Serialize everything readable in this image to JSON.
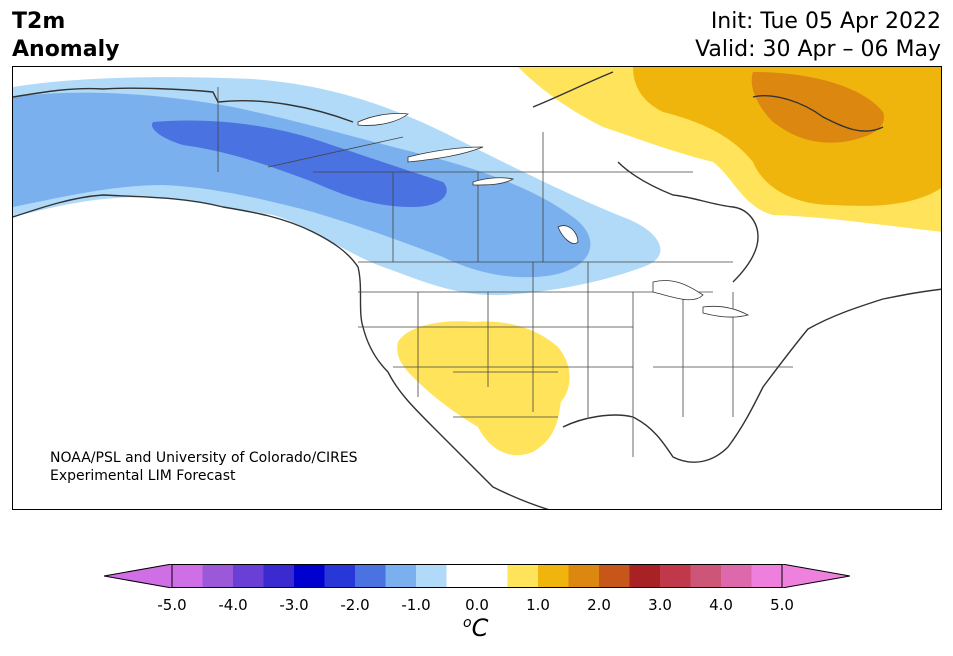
{
  "title": {
    "line1": "T2m",
    "line2": "Anomaly"
  },
  "info": {
    "init": "Init: Tue 05 Apr 2022",
    "valid": "Valid: 30 Apr – 06 May"
  },
  "credit": {
    "line1": "NOAA/PSL and University of Colorado/CIRES",
    "line2": "Experimental LIM Forecast"
  },
  "colorbar": {
    "unit_prefix": "o",
    "unit_main": "C",
    "ticks": [
      "-5.0",
      "-4.0",
      "-3.0",
      "-2.0",
      "-1.0",
      "0.0",
      "1.0",
      "2.0",
      "3.0",
      "4.0",
      "5.0"
    ],
    "tick_values": [
      -5,
      -4,
      -3,
      -2,
      -1,
      0,
      1,
      2,
      3,
      4,
      5
    ],
    "min_value": -5.0,
    "max_value": 5.0,
    "step": 0.5,
    "colors": [
      "#cf6fe6",
      "#9b59d9",
      "#6a3fd6",
      "#3a2ad0",
      "#0000cf",
      "#2838d8",
      "#4a72e0",
      "#7ab0ee",
      "#b0daf8",
      "#ffffff",
      "#ffffff",
      "#ffe35a",
      "#f0b50c",
      "#dc870f",
      "#c7561a",
      "#a82124",
      "#c0384a",
      "#cd5678",
      "#dd68ab",
      "#ee7fdc"
    ],
    "extend_low_color": "#d06ee6",
    "extend_high_color": "#ee80de"
  },
  "anomaly_colors": {
    "minus_3": "#4a72e0",
    "minus_2": "#7ab0ee",
    "minus_1": "#b0daf8",
    "plus_1": "#ffe35a",
    "plus_1_5": "#f0b50c",
    "plus_2": "#dc870f"
  }
}
